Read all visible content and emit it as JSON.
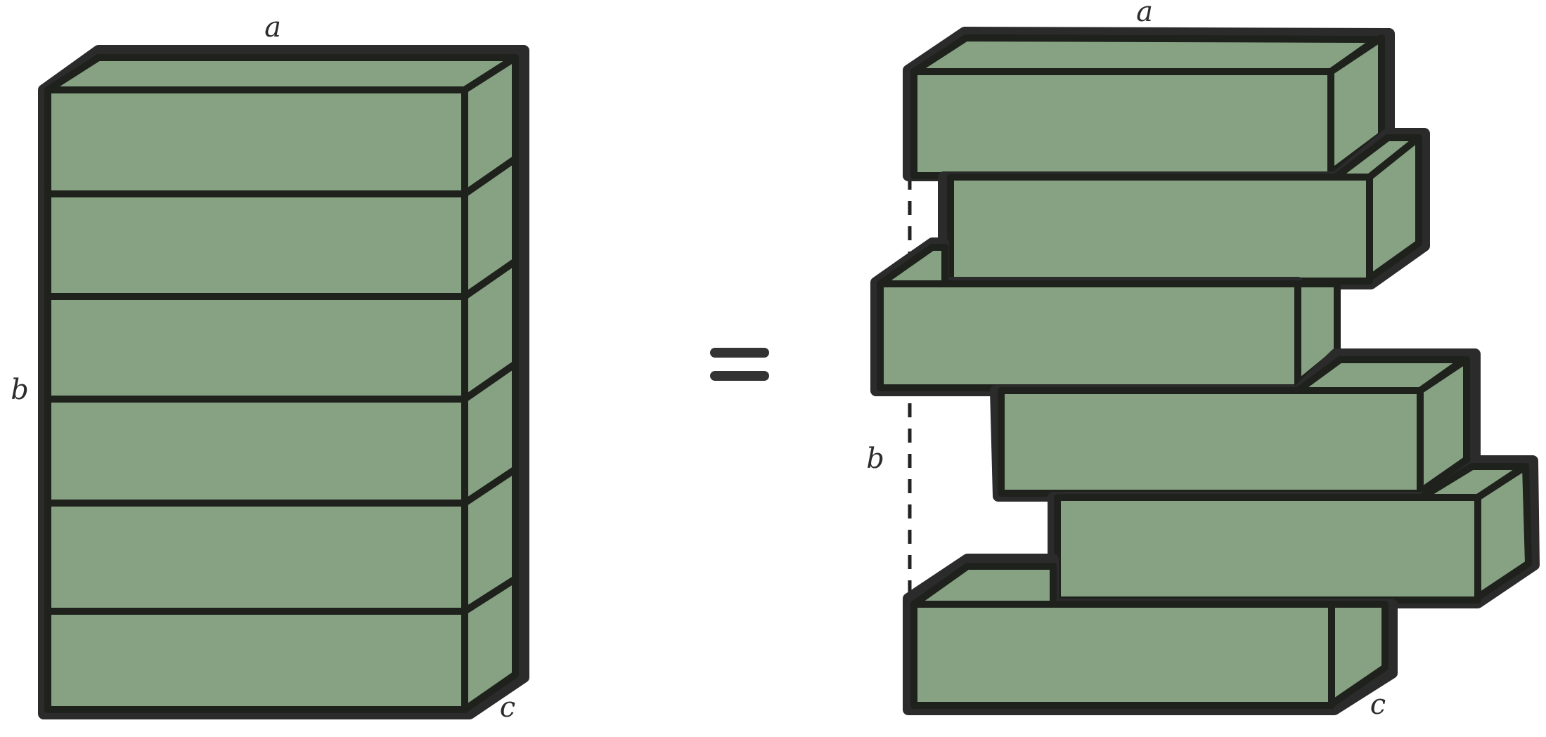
{
  "labels": {
    "left": {
      "a": "a",
      "b": "b",
      "c": "c"
    },
    "right": {
      "a": "a",
      "b": "b",
      "c": "c"
    },
    "equals": "="
  },
  "colors": {
    "brick": "#87a283",
    "edge": "#1e211c",
    "outline": "#2b2b2b"
  },
  "diagram": {
    "left_stack_slab_count": 6,
    "right_stack_slab_count": 6
  }
}
